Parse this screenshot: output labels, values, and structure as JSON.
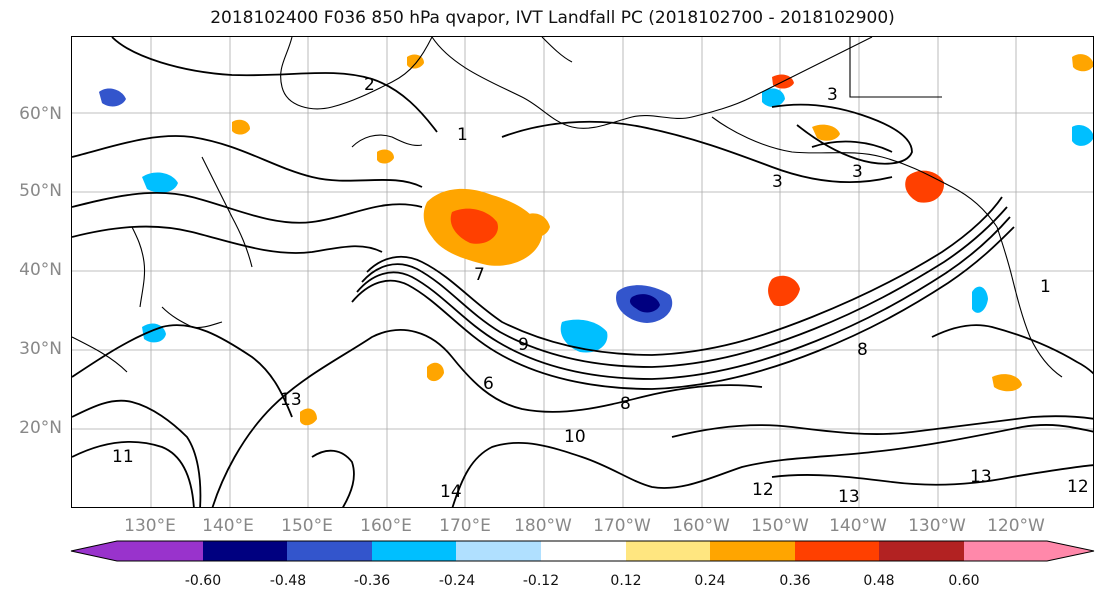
{
  "title": "2018102400 F036 850 hPa qvapor, IVT Landfall PC (2018102700 - 2018102900)",
  "map": {
    "lat_labels": [
      "60°N",
      "50°N",
      "40°N",
      "30°N",
      "20°N"
    ],
    "lon_labels": [
      "130°E",
      "140°E",
      "150°E",
      "160°E",
      "170°E",
      "180°W",
      "170°W",
      "160°W",
      "150°W",
      "140°W",
      "130°W",
      "120°W"
    ],
    "contour_labels": [
      "2",
      "3",
      "3",
      "3",
      "1",
      "9",
      "7",
      "8",
      "6",
      "13",
      "10",
      "14",
      "13",
      "12",
      "11",
      "13",
      "12",
      "8",
      "1"
    ]
  },
  "colorbar": {
    "tick_labels": [
      "-0.60",
      "-0.48",
      "-0.36",
      "-0.24",
      "-0.12",
      "0.12",
      "0.24",
      "0.36",
      "0.48",
      "0.60"
    ],
    "colors": [
      "#9933cc",
      "#000080",
      "#3355cc",
      "#00bfff",
      "#b0e0ff",
      "#ffffff",
      "#ffe680",
      "#ffa500",
      "#ff4000",
      "#b22222",
      "#ff88aa"
    ]
  }
}
